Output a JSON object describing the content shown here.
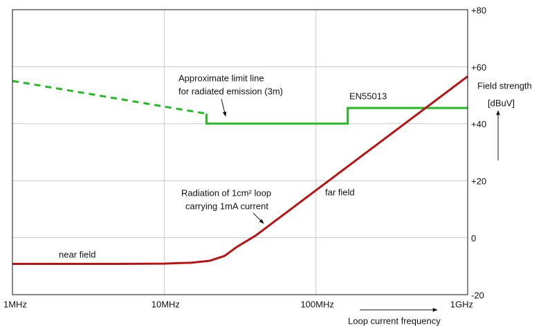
{
  "chart_data": {
    "type": "line",
    "log_x": true,
    "grid": true,
    "xlim": [
      1,
      1000
    ],
    "ylim": [
      -20,
      80
    ],
    "xticks": [
      {
        "value": 1,
        "label": "1MHz"
      },
      {
        "value": 10,
        "label": "10MHz"
      },
      {
        "value": 100,
        "label": "100MHz"
      },
      {
        "value": 1000,
        "label": "1GHz"
      }
    ],
    "yticks": [
      {
        "value": 80,
        "label": "+80"
      },
      {
        "value": 60,
        "label": "+60"
      },
      {
        "value": 40,
        "label": "+40"
      },
      {
        "value": 20,
        "label": "+20"
      },
      0,
      -20
    ],
    "y_label": [
      "Field strength",
      "[dBuV]"
    ],
    "x_label": "Loop current frequency",
    "series": [
      {
        "color": "#22bb22",
        "dashed": true,
        "x": [
          1,
          19
        ],
        "values": [
          55,
          43.5
        ]
      },
      {
        "color": "#22bb22",
        "dashed": false,
        "x": [
          19,
          19,
          162,
          162,
          1000
        ],
        "values": [
          43.5,
          40,
          40,
          45.5,
          45.5
        ]
      },
      {
        "color": "#bb1111",
        "dashed": false,
        "x": [
          1,
          5,
          10,
          15,
          20,
          25,
          30,
          40,
          100,
          1000
        ],
        "values": [
          -9.2,
          -9.2,
          -9.1,
          -8.8,
          -8.1,
          -6.4,
          -3.3,
          0.7,
          16.6,
          56.6
        ]
      }
    ],
    "annotations": [
      "Approximate limit line",
      "for radiated emission (3m)",
      "EN55013",
      "Radiation of 1cm² loop",
      "carrying 1mA current",
      "far field",
      "near field"
    ]
  }
}
